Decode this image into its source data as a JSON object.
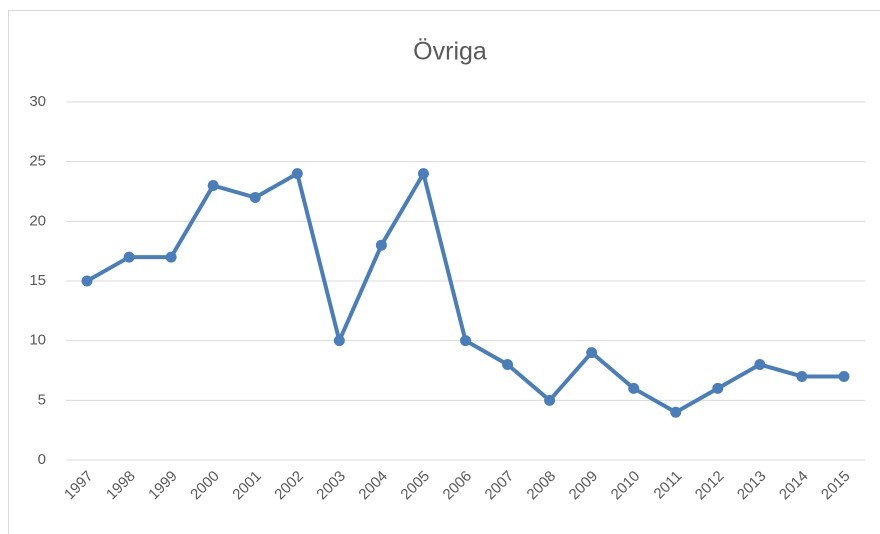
{
  "chart_data": {
    "type": "line",
    "title": "Övriga",
    "categories": [
      "1997",
      "1998",
      "1999",
      "2000",
      "2001",
      "2002",
      "2003",
      "2004",
      "2005",
      "2006",
      "2007",
      "2008",
      "2009",
      "2010",
      "2011",
      "2012",
      "2013",
      "2014",
      "2015"
    ],
    "series": [
      {
        "name": "Övriga",
        "color": "#4a7ebb",
        "values": [
          15,
          17,
          17,
          23,
          22,
          24,
          10,
          18,
          24,
          10,
          8,
          5,
          9,
          6,
          4,
          6,
          8,
          7,
          7
        ]
      }
    ],
    "ylim": [
      0,
      30
    ],
    "yticks": [
      0,
      5,
      10,
      15,
      20,
      25,
      30
    ],
    "grid": true
  }
}
